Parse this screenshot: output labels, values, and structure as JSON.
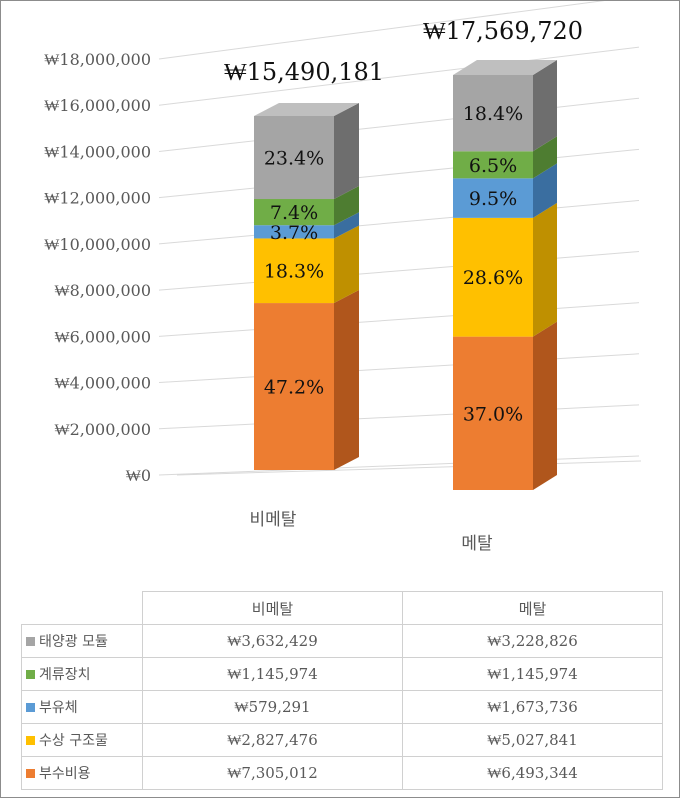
{
  "chart_data": {
    "type": "bar",
    "stacked": true,
    "three_d": true,
    "categories": [
      "비메탈",
      "메탈"
    ],
    "totals": [
      "₩15,490,181",
      "₩17,569,720"
    ],
    "total_values": [
      15490181,
      17569720
    ],
    "y_ticks": [
      "₩0",
      "₩2,000,000",
      "₩4,000,000",
      "₩6,000,000",
      "₩8,000,000",
      "₩10,000,000",
      "₩12,000,000",
      "₩14,000,000",
      "₩16,000,000",
      "₩18,000,000"
    ],
    "ylim": [
      0,
      18000000
    ],
    "series": [
      {
        "name": "부수비용",
        "color": "#ed7d31",
        "side": "#b0561c",
        "values": [
          7305012,
          6493344
        ],
        "labels": [
          "47.2%",
          "37.0%"
        ],
        "table": [
          "₩7,305,012",
          "₩6,493,344"
        ]
      },
      {
        "name": "수상 구조물",
        "color": "#ffc000",
        "side": "#bf9000",
        "values": [
          2827476,
          5027841
        ],
        "labels": [
          "18.3%",
          "28.6%"
        ],
        "table": [
          "₩2,827,476",
          "₩5,027,841"
        ]
      },
      {
        "name": "부유체",
        "color": "#5b9bd5",
        "side": "#3a6ea0",
        "values": [
          579291,
          1673736
        ],
        "labels": [
          "3.7%",
          "9.5%"
        ],
        "table": [
          "₩579,291",
          "₩1,673,736"
        ]
      },
      {
        "name": "계류장치",
        "color": "#70ad47",
        "side": "#4e7d31",
        "values": [
          1145974,
          1145974
        ],
        "labels": [
          "7.4%",
          "6.5%"
        ],
        "table": [
          "₩1,145,974",
          "₩1,145,974"
        ]
      },
      {
        "name": "태양광 모듈",
        "color": "#a5a5a5",
        "side": "#6e6e6e",
        "values": [
          3632429,
          3228826
        ],
        "labels": [
          "23.4%",
          "18.4%"
        ],
        "table": [
          "₩3,632,429",
          "₩3,228,826"
        ]
      }
    ],
    "table_row_order": [
      "태양광 모듈",
      "계류장치",
      "부유체",
      "수상 구조물",
      "부수비용"
    ],
    "legend": "data-table"
  }
}
